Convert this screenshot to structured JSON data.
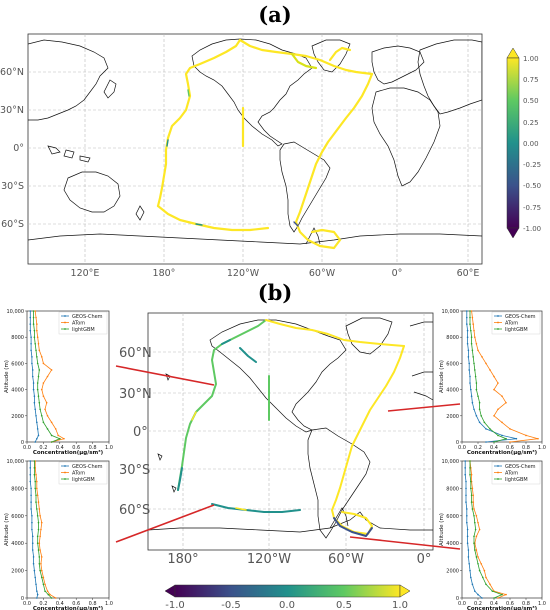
{
  "panel_a": {
    "label": "(a)",
    "lat_labels": [
      "60°N",
      "30°N",
      "0°",
      "30°S",
      "60°S"
    ],
    "lon_labels": [
      "120°E",
      "180°",
      "120°W",
      "60°W",
      "0°",
      "60°E"
    ],
    "colorbar": {
      "ticks": [
        "1.00",
        "0.75",
        "0.50",
        "0.25",
        "0.00",
        "-0.25",
        "-0.50",
        "-0.75",
        "-1.00"
      ],
      "min": -1.0,
      "max": 1.0,
      "colors": [
        "#440154",
        "#3b528b",
        "#21918c",
        "#5ec962",
        "#fde725"
      ]
    }
  },
  "panel_b": {
    "label": "(b)",
    "lat_labels": [
      "60°N",
      "30°N",
      "0°",
      "30°S",
      "60°S"
    ],
    "lon_labels": [
      "180°",
      "120°W",
      "60°W",
      "0°"
    ],
    "colorbar": {
      "ticks": [
        "-1.0",
        "-0.5",
        "0.0",
        "0.5",
        "1.0"
      ]
    }
  },
  "profiles": {
    "xlabel": "Concentration(μg/sm³)",
    "ylabel": "Altitude (m)",
    "y_ticks": [
      "0",
      "2000",
      "4000",
      "6000",
      "8000",
      "10,000"
    ],
    "x_ticks": [
      "0.0",
      "0.2",
      "0.4",
      "0.6",
      "0.8",
      "1.0"
    ],
    "legend": [
      "GEOS-Chem",
      "ATom",
      "lightGBM"
    ],
    "colors": {
      "geos": "#1f77b4",
      "atom": "#ff7f0e",
      "lgbm": "#2ca02c"
    },
    "altitudes": [
      0,
      250,
      500,
      1000,
      1500,
      2000,
      2500,
      3000,
      3500,
      4000,
      4500,
      5000,
      5500,
      6000,
      6500,
      7000,
      7500,
      8000,
      8500,
      9000,
      9500,
      10000
    ],
    "panels": [
      {
        "id": "top-left",
        "geos": [
          0.1,
          0.12,
          0.14,
          0.13,
          0.12,
          0.11,
          0.1,
          0.09,
          0.09,
          0.08,
          0.08,
          0.07,
          0.07,
          0.06,
          0.06,
          0.05,
          0.05,
          0.05,
          0.04,
          0.04,
          0.04,
          0.04
        ],
        "atom": [
          0.3,
          0.45,
          0.38,
          0.35,
          0.3,
          0.25,
          0.22,
          0.24,
          0.2,
          0.18,
          0.2,
          0.25,
          0.3,
          0.2,
          0.18,
          0.15,
          0.14,
          0.13,
          0.12,
          0.12,
          0.11,
          0.1
        ],
        "lgbm": [
          0.3,
          0.4,
          0.3,
          0.25,
          0.2,
          0.18,
          0.16,
          0.15,
          0.14,
          0.13,
          0.13,
          0.14,
          0.15,
          0.13,
          0.12,
          0.11,
          0.1,
          0.09,
          0.09,
          0.08,
          0.08,
          0.08
        ]
      },
      {
        "id": "bottom-left",
        "geos": [
          0.12,
          0.13,
          0.12,
          0.11,
          0.1,
          0.09,
          0.08,
          0.08,
          0.07,
          0.07,
          0.07,
          0.06,
          0.06,
          0.06,
          0.05,
          0.05,
          0.05,
          0.05,
          0.04,
          0.04,
          0.04,
          0.04
        ],
        "atom": [
          0.35,
          0.28,
          0.25,
          0.22,
          0.2,
          0.18,
          0.17,
          0.18,
          0.16,
          0.15,
          0.16,
          0.17,
          0.18,
          0.16,
          0.15,
          0.14,
          0.13,
          0.12,
          0.12,
          0.11,
          0.1,
          0.1
        ],
        "lgbm": [
          0.3,
          0.26,
          0.22,
          0.2,
          0.18,
          0.16,
          0.15,
          0.15,
          0.14,
          0.13,
          0.13,
          0.14,
          0.14,
          0.13,
          0.12,
          0.11,
          0.11,
          0.1,
          0.1,
          0.09,
          0.09,
          0.09
        ]
      },
      {
        "id": "top-right",
        "geos": [
          0.3,
          0.68,
          0.5,
          0.3,
          0.22,
          0.18,
          0.15,
          0.13,
          0.12,
          0.11,
          0.1,
          0.1,
          0.09,
          0.09,
          0.08,
          0.08,
          0.07,
          0.07,
          0.07,
          0.06,
          0.06,
          0.06
        ],
        "atom": [
          0.6,
          0.95,
          0.8,
          0.6,
          0.5,
          0.4,
          0.45,
          0.55,
          0.5,
          0.4,
          0.45,
          0.4,
          0.35,
          0.3,
          0.25,
          0.2,
          0.18,
          0.16,
          0.15,
          0.14,
          0.13,
          0.12
        ],
        "lgbm": [
          0.4,
          0.55,
          0.45,
          0.35,
          0.28,
          0.24,
          0.22,
          0.22,
          0.2,
          0.18,
          0.18,
          0.17,
          0.16,
          0.15,
          0.14,
          0.13,
          0.12,
          0.12,
          0.11,
          0.1,
          0.1,
          0.1
        ]
      },
      {
        "id": "bottom-right",
        "geos": [
          0.25,
          0.2,
          0.16,
          0.13,
          0.11,
          0.1,
          0.09,
          0.08,
          0.08,
          0.07,
          0.07,
          0.07,
          0.06,
          0.06,
          0.06,
          0.05,
          0.05,
          0.05,
          0.05,
          0.04,
          0.04,
          0.04
        ],
        "atom": [
          0.45,
          0.55,
          0.4,
          0.35,
          0.3,
          0.28,
          0.24,
          0.2,
          0.18,
          0.16,
          0.18,
          0.22,
          0.2,
          0.18,
          0.15,
          0.14,
          0.14,
          0.13,
          0.12,
          0.12,
          0.11,
          0.1
        ],
        "lgbm": [
          0.4,
          0.5,
          0.38,
          0.3,
          0.26,
          0.22,
          0.2,
          0.18,
          0.16,
          0.15,
          0.15,
          0.17,
          0.16,
          0.15,
          0.13,
          0.12,
          0.12,
          0.11,
          0.11,
          0.1,
          0.1,
          0.1
        ]
      }
    ]
  }
}
